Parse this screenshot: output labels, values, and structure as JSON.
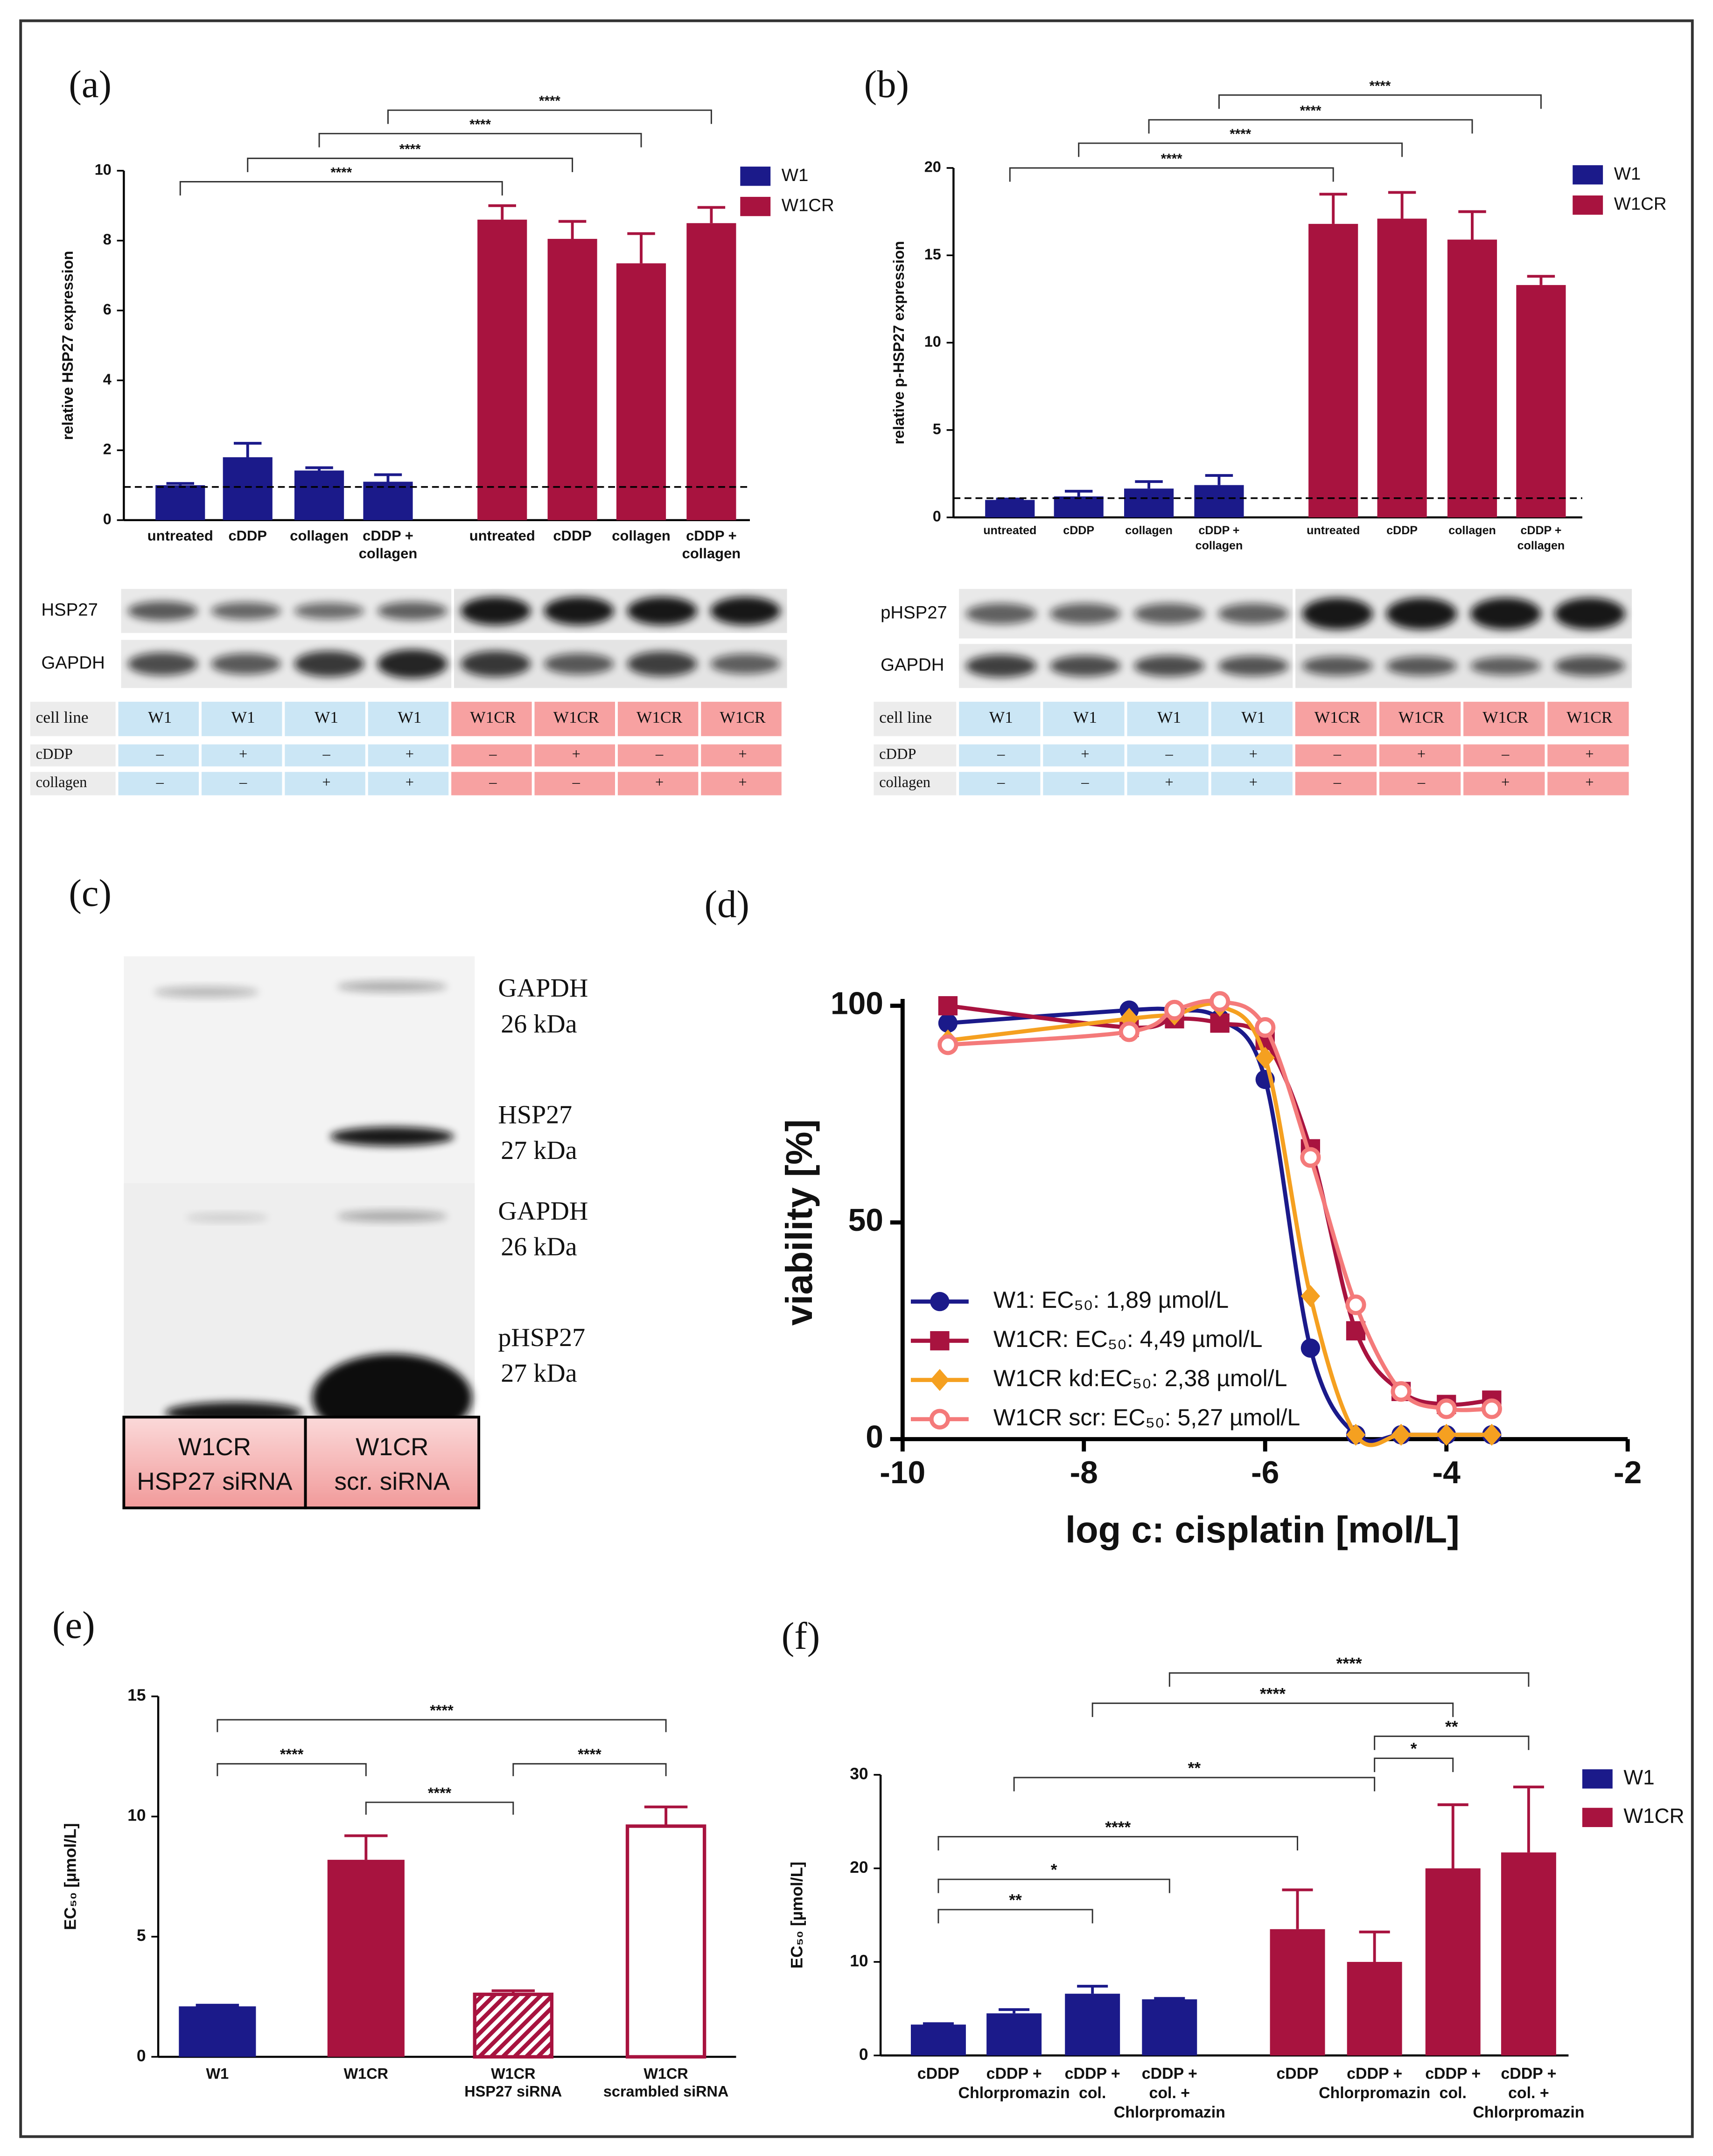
{
  "chart_data": [
    {
      "type": "bar",
      "panel": "(a)",
      "ylabel": "relative HSP27 expression",
      "categories": [
        [
          "untreated"
        ],
        [
          "cDDP"
        ],
        [
          "collagen"
        ],
        [
          "cDDP +",
          "collagen"
        ]
      ],
      "series": [
        {
          "name": "W1",
          "color": "#1b1a8a",
          "values": [
            1.0,
            1.8,
            1.42,
            1.1
          ],
          "errors": [
            0.05,
            0.4,
            0.08,
            0.2
          ]
        },
        {
          "name": "W1CR",
          "color": "#a8133f",
          "values": [
            8.6,
            8.05,
            7.35,
            8.5
          ],
          "errors": [
            0.4,
            0.5,
            0.85,
            0.45
          ]
        }
      ],
      "ylim": [
        0,
        10
      ],
      "yticks": [
        0,
        2,
        4,
        6,
        8,
        10
      ],
      "reference_line": 0.95,
      "legend": "top-right",
      "annotations": [
        "****",
        "****",
        "****",
        "****"
      ],
      "blot": [
        "HSP27",
        "GAPDH"
      ],
      "table": [
        [
          "cell line",
          "W1",
          "W1",
          "W1",
          "W1",
          "W1CR",
          "W1CR",
          "W1CR",
          "W1CR"
        ],
        [
          "cDDP",
          "–",
          "+",
          "–",
          "+",
          "–",
          "+",
          "–",
          "+"
        ],
        [
          "collagen",
          "–",
          "–",
          "+",
          "+",
          "–",
          "–",
          "+",
          "+"
        ]
      ]
    },
    {
      "type": "bar",
      "panel": "(b)",
      "ylabel": "relative p-HSP27 expression",
      "categories": [
        [
          "untreated"
        ],
        [
          "cDDP"
        ],
        [
          "collagen"
        ],
        [
          "cDDP +",
          "collagen"
        ]
      ],
      "series": [
        {
          "name": "W1",
          "color": "#1b1a8a",
          "values": [
            1.0,
            1.2,
            1.65,
            1.85
          ],
          "errors": [
            0.05,
            0.3,
            0.4,
            0.55
          ]
        },
        {
          "name": "W1CR",
          "color": "#a8133f",
          "values": [
            16.8,
            17.1,
            15.9,
            13.3
          ],
          "errors": [
            1.7,
            1.5,
            1.6,
            0.5
          ]
        }
      ],
      "ylim": [
        0,
        20
      ],
      "yticks": [
        0,
        5,
        10,
        15,
        20
      ],
      "reference_line": 1.1,
      "legend": "top-right",
      "annotations": [
        "****",
        "****",
        "****",
        "****"
      ],
      "blot": [
        "pHSP27",
        "GAPDH"
      ],
      "table": [
        [
          "cell line",
          "W1",
          "W1",
          "W1",
          "W1",
          "W1CR",
          "W1CR",
          "W1CR",
          "W1CR"
        ],
        [
          "cDDP",
          "–",
          "+",
          "–",
          "+",
          "–",
          "+",
          "–",
          "+"
        ],
        [
          "collagen",
          "–",
          "–",
          "+",
          "+",
          "–",
          "–",
          "+",
          "+"
        ]
      ]
    },
    {
      "type": "line",
      "panel": "(d)",
      "xlabel": "log c: cisplatin [mol/L]",
      "ylabel": "viability [%]",
      "x": [
        -9.5,
        -7.5,
        -7,
        -6.5,
        -6,
        -5.5,
        -5,
        -4.5,
        -4,
        -3.5
      ],
      "series": [
        {
          "name": "W1: EC₅₀: 1,89 µmol/L",
          "color": "#1b1a8a",
          "marker": "circle",
          "values": [
            96,
            99,
            99,
            97,
            83,
            21,
            1,
            1,
            1,
            1
          ]
        },
        {
          "name": "W1CR: EC₅₀: 4,49 µmol/L",
          "color": "#a8133f",
          "marker": "square",
          "values": [
            100,
            95,
            97,
            96,
            92,
            67,
            25,
            11,
            8,
            9
          ]
        },
        {
          "name": "W1CR kd:EC₅₀: 2,38 µmol/L",
          "color": "#f5a020",
          "marker": "diamond",
          "values": [
            92,
            97,
            98,
            100,
            88,
            33,
            1,
            1,
            1,
            1
          ]
        },
        {
          "name": "W1CR scr: EC₅₀: 5,27 µmol/L",
          "color": "#f47a7a",
          "marker": "open-circle",
          "values": [
            91,
            94,
            99,
            101,
            95,
            65,
            31,
            11,
            7,
            7
          ]
        }
      ],
      "xlim": [
        -10,
        -2
      ],
      "xticks": [
        -10,
        -8,
        -6,
        -4,
        -2
      ],
      "ylim": [
        0,
        100
      ],
      "yticks": [
        0,
        50,
        100
      ],
      "legend": "bottom-left"
    },
    {
      "type": "bar",
      "panel": "(e)",
      "ylabel": "EC₅₀ [µmol/L]",
      "categories": [
        [
          "W1"
        ],
        [
          "W1CR"
        ],
        [
          "W1CR",
          "HSP27 siRNA"
        ],
        [
          "W1CR",
          "scrambled siRNA"
        ]
      ],
      "values": [
        2.1,
        8.2,
        2.6,
        9.6
      ],
      "errors": [
        0.05,
        1.0,
        0.15,
        0.8
      ],
      "colors": [
        "#1b1a8a",
        "#a8133f",
        "#a8133f",
        "#a8133f"
      ],
      "fills": [
        "solid",
        "solid",
        "hatched",
        "open"
      ],
      "ylim": [
        0,
        15
      ],
      "yticks": [
        0,
        5,
        10,
        15
      ],
      "annotations": [
        "****",
        "****",
        "****",
        "****"
      ]
    },
    {
      "type": "bar",
      "panel": "(f)",
      "ylabel": "EC₅₀ [µmol/L]",
      "categories": [
        [
          "cDDP"
        ],
        [
          "cDDP +",
          "Chlorpromazin"
        ],
        [
          "cDDP +",
          "col."
        ],
        [
          "cDDP +",
          "col. +",
          "Chlorpromazin"
        ]
      ],
      "series": [
        {
          "name": "W1",
          "color": "#1b1a8a",
          "values": [
            3.3,
            4.5,
            6.6,
            6.0
          ],
          "errors": [
            0.1,
            0.4,
            0.8,
            0.1
          ]
        },
        {
          "name": "W1CR",
          "color": "#a8133f",
          "values": [
            13.5,
            10.0,
            20.0,
            21.7
          ],
          "errors": [
            4.2,
            3.2,
            6.8,
            7.0
          ]
        }
      ],
      "ylim": [
        0,
        30
      ],
      "yticks": [
        0,
        10,
        20,
        30
      ],
      "legend": "top-right",
      "annotations": [
        "**",
        "*",
        "****",
        "**",
        "*",
        "**",
        "****",
        "****"
      ]
    }
  ],
  "panel_c": {
    "panel": "(c)",
    "labels": [
      [
        "GAPDH",
        "26 kDa"
      ],
      [
        "HSP27",
        "27 kDa"
      ],
      [
        "GAPDH",
        "26 kDa"
      ],
      [
        "pHSP27",
        "27 kDa"
      ]
    ],
    "lanes": [
      [
        "W1CR",
        "HSP27 siRNA"
      ],
      [
        "W1CR",
        "scr.  siRNA"
      ]
    ]
  }
}
